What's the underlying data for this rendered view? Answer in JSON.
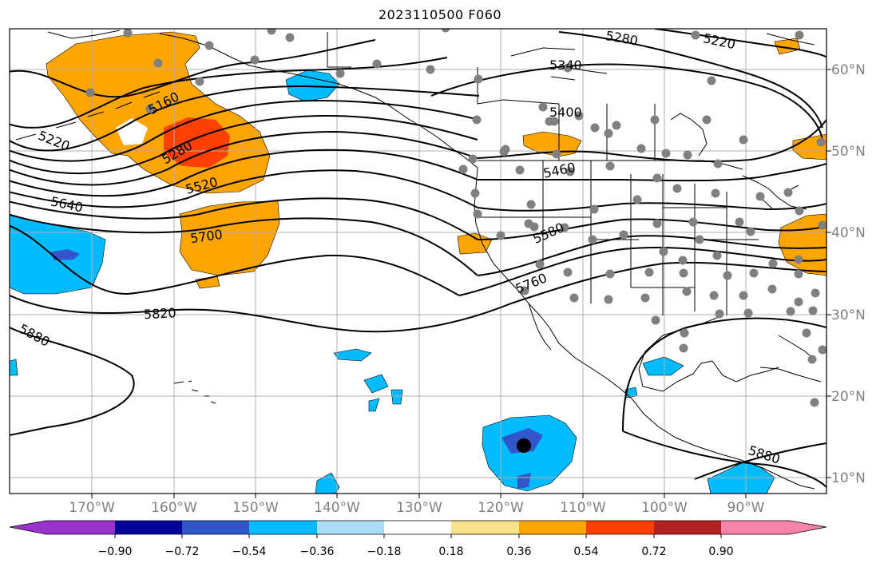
{
  "title": "2023110500 F060",
  "map": {
    "longitude_labels": [
      "170°W",
      "160°W",
      "150°W",
      "140°W",
      "130°W",
      "120°W",
      "110°W",
      "100°W",
      "90°W"
    ],
    "latitude_labels": [
      "60°N",
      "50°N",
      "40°N",
      "30°N",
      "20°N",
      "10°N"
    ],
    "contour_labels": [
      "5160",
      "5220",
      "5280",
      "5520",
      "5640",
      "5700",
      "5820",
      "5880",
      "5340",
      "5400",
      "5460",
      "5580",
      "5760",
      "5280",
      "5220",
      "5880"
    ],
    "contour_color": "#000000",
    "grid_color": "#b0b0b0",
    "station_marker_color": "#808080",
    "storm_center_color": "#000000"
  },
  "colorbar": {
    "tick_labels": [
      "−0.90",
      "−0.72",
      "−0.54",
      "−0.36",
      "−0.18",
      "0.18",
      "0.36",
      "0.54",
      "0.72",
      "0.90"
    ],
    "colors": [
      "#9933cc",
      "#000099",
      "#3355cc",
      "#00bbff",
      "#aaddf8",
      "#ffffff",
      "#f8e38a",
      "#ffa500",
      "#ff4000",
      "#b22222",
      "#f783a8",
      "#f783a8"
    ]
  }
}
